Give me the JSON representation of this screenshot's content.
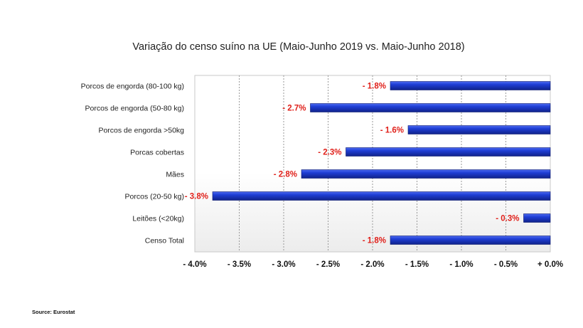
{
  "chart_data": {
    "type": "bar",
    "orientation": "horizontal",
    "title": "Variação do censo suíno na UE (Maio-Junho 2019 vs. Maio-Junho 2018)",
    "categories": [
      "Porcos de engorda (80-100 kg)",
      "Porcos de engorda (50-80 kg)",
      "Porcos de engorda >50kg",
      "Porcas cobertas",
      "Mães",
      "Porcos (20-50 kg)",
      "Leitões (<20kg)",
      "Censo Total"
    ],
    "values": [
      -1.8,
      -2.7,
      -1.6,
      -2.3,
      -2.8,
      -3.8,
      -0.3,
      -1.8
    ],
    "data_labels": [
      "- 1.8%",
      "- 2.7%",
      "- 1.6%",
      "- 2.3%",
      "- 2.8%",
      "- 3.8%",
      "- 0.3%",
      "- 1.8%"
    ],
    "xlim": [
      -4.0,
      0.0
    ],
    "x_ticks": [
      -4.0,
      -3.5,
      -3.0,
      -2.5,
      -2.0,
      -1.5,
      -1.0,
      -0.5,
      0.0
    ],
    "x_tick_labels": [
      "- 4.0%",
      "- 3.5%",
      "- 3.0%",
      "- 2.5%",
      "- 2.0%",
      "- 1.5%",
      "- 1.0%",
      "- 0.5%",
      "+ 0.0%"
    ],
    "xlabel": "",
    "ylabel": "",
    "grid": "vertical dashed",
    "colors": {
      "bar": "#1f3fd6",
      "data_label": "#e0201a"
    }
  },
  "source": "Source: Eurostat"
}
